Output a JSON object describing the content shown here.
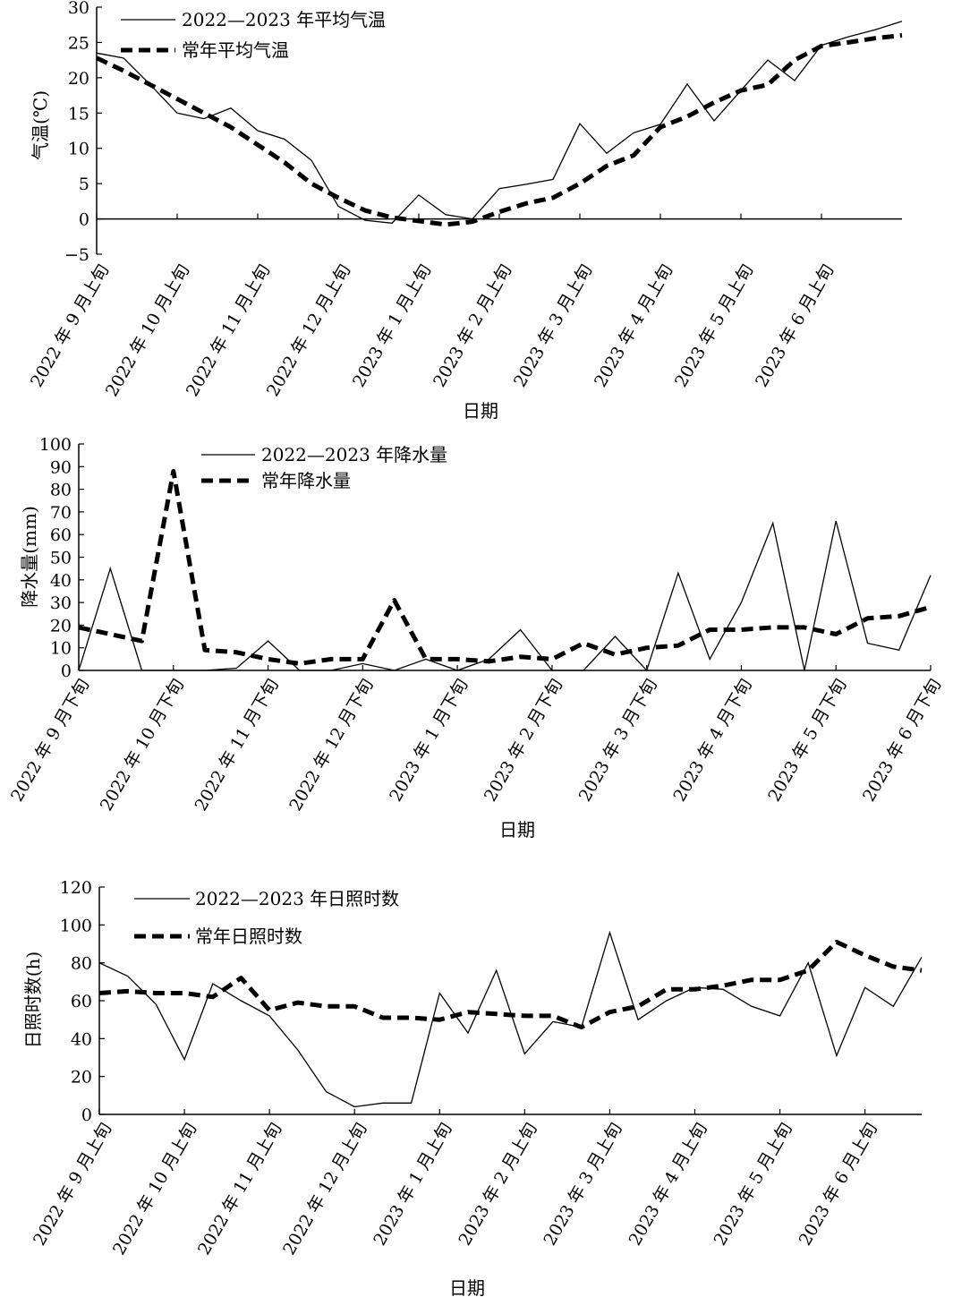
{
  "chart_data": [
    {
      "type": "line",
      "title": "",
      "xlabel": "日期",
      "ylabel": "气温(℃)",
      "ylim": [
        -5,
        30
      ],
      "yticks": [
        -5,
        0,
        5,
        10,
        15,
        20,
        25,
        30
      ],
      "x_tick_labels": [
        "2022 年 9 月上旬",
        "2022 年 10 月上旬",
        "2022 年 11 月上旬",
        "2022 年 12 月上旬",
        "2023 年 1 月上旬",
        "2023 年 2 月上旬",
        "2023 年 3 月上旬",
        "2023 年 4 月上旬",
        "2023 年 5 月上旬",
        "2023 年 6 月上旬"
      ],
      "x_tick_index": [
        0,
        3,
        6,
        9,
        12,
        15,
        18,
        21,
        24,
        27
      ],
      "x_count": 31,
      "legend": "top-left",
      "grid": false,
      "series": [
        {
          "name": "2022—2023 年平均气温",
          "style": "solid",
          "values": [
            23.5,
            22.8,
            19.0,
            15.0,
            14.2,
            15.7,
            12.5,
            11.3,
            8.3,
            1.8,
            -0.2,
            -0.6,
            3.4,
            0.6,
            0.0,
            4.3,
            4.9,
            5.6,
            13.5,
            9.3,
            12.2,
            13.4,
            19.1,
            13.9,
            18.2,
            22.5,
            19.6,
            24.6,
            25.8,
            26.8,
            28.0
          ]
        },
        {
          "name": "常年平均气温",
          "style": "dashed",
          "values": [
            22.8,
            21.0,
            19.0,
            17.0,
            15.0,
            13.0,
            10.5,
            8.0,
            5.0,
            3.0,
            1.2,
            0.2,
            -0.3,
            -0.8,
            -0.4,
            1.0,
            2.2,
            3.0,
            5.0,
            7.5,
            9.0,
            13.0,
            14.5,
            16.5,
            18.2,
            19.0,
            22.5,
            24.5,
            25.0,
            25.6,
            26.0
          ]
        }
      ]
    },
    {
      "type": "line",
      "title": "",
      "xlabel": "日期",
      "ylabel": "降水量(mm)",
      "ylim": [
        0,
        100
      ],
      "yticks": [
        0,
        10,
        20,
        30,
        40,
        50,
        60,
        70,
        80,
        90,
        100
      ],
      "x_tick_labels": [
        "2022 年 9 月下旬",
        "2022 年 10 月下旬",
        "2022 年 11 月下旬",
        "2022 年 12 月下旬",
        "2023 年 1 月下旬",
        "2023 年 2 月下旬",
        "2023 年 3 月下旬",
        "2023 年 4 月下旬",
        "2023 年 5 月下旬",
        "2023 年 6 月下旬"
      ],
      "x_tick_index": [
        0,
        3,
        6,
        9,
        12,
        15,
        18,
        21,
        24,
        27
      ],
      "x_count": 28,
      "legend": "top",
      "grid": false,
      "series": [
        {
          "name": "2022—2023 年降水量",
          "style": "solid",
          "values": [
            0,
            45,
            0,
            0,
            0,
            1,
            13,
            0,
            0,
            3,
            0,
            5,
            0,
            5,
            18,
            0,
            0,
            15,
            0,
            43,
            5,
            30,
            65,
            0,
            66,
            12,
            9,
            42
          ]
        },
        {
          "name": "常年降水量",
          "style": "dashed",
          "values": [
            19,
            16,
            13,
            88,
            9,
            8,
            5,
            3,
            5,
            5,
            31,
            5,
            5,
            4,
            6,
            5,
            12,
            7,
            10,
            11,
            18,
            18,
            19,
            19,
            16,
            23,
            24,
            28
          ]
        }
      ]
    },
    {
      "type": "line",
      "title": "",
      "xlabel": "日期",
      "ylabel": "日照时数(h)",
      "ylim": [
        0,
        120
      ],
      "yticks": [
        0,
        20,
        40,
        60,
        80,
        100,
        120
      ],
      "x_tick_labels": [
        "2022 年 9 月上旬",
        "2022 年 10 月上旬",
        "2022 年 11 月上旬",
        "2022 年 12 月上旬",
        "2023 年 1 月上旬",
        "2023 年 2 月上旬",
        "2023 年 3 月上旬",
        "2023 年 4 月上旬",
        "2023 年 5 月上旬",
        "2023 年 6 月上旬"
      ],
      "x_tick_index": [
        0,
        3,
        6,
        9,
        12,
        15,
        18,
        21,
        24,
        27
      ],
      "x_count": 30,
      "legend": "top-left",
      "grid": false,
      "series": [
        {
          "name": "2022—2023 年日照时数",
          "style": "solid",
          "values": [
            80,
            73,
            58,
            29,
            69,
            60,
            52,
            34,
            12,
            4,
            6,
            6,
            64,
            43,
            76,
            32,
            49,
            46,
            96,
            50,
            60,
            67,
            66,
            57,
            52,
            80,
            31,
            67,
            57,
            83
          ]
        },
        {
          "name": "常年日照时数",
          "style": "dashed",
          "values": [
            64,
            65,
            64,
            64,
            62,
            72,
            55,
            59,
            57,
            57,
            51,
            51,
            50,
            54,
            53,
            52,
            52,
            46,
            54,
            57,
            66,
            66,
            68,
            71,
            71,
            76,
            91,
            84,
            78,
            76
          ]
        }
      ]
    }
  ]
}
